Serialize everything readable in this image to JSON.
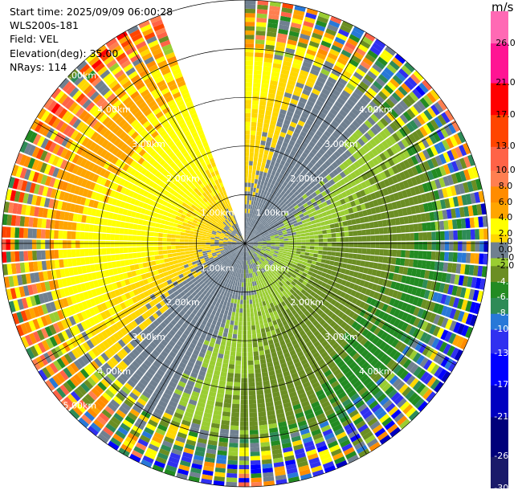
{
  "info": {
    "start_time": "Start time: 2025/09/09 06:00:28",
    "instrument": "WLS200s-181",
    "field": "Field: VEL",
    "elevation": "Elevation(deg): 35.00",
    "nrays": "NRays: 114"
  },
  "chart_data": {
    "type": "heatmap",
    "projection": "ppi-polar",
    "field": "VEL",
    "units": "m/s",
    "nrays": 114,
    "elevation_deg": 35.0,
    "max_range_km": 5.0,
    "empty_sector_deg": [
      340,
      360
    ],
    "range_rings_km": [
      1.0,
      2.0,
      3.0,
      4.0,
      5.0
    ],
    "range_ring_labels": [
      "1.00km",
      "2.00km",
      "3.00km",
      "4.00km",
      "5.00km"
    ],
    "colorbar": {
      "levels": [
        -30.0,
        -26.0,
        -21.0,
        -17.0,
        -13.0,
        -10.0,
        -8.0,
        -6.0,
        -4.0,
        -2.0,
        -1.0,
        0.0,
        1.0,
        2.0,
        4.0,
        6.0,
        8.0,
        10.0,
        13.0,
        17.0,
        21.0,
        26.0,
        30.0
      ],
      "tick_labels": [
        "-30.0",
        "-26.0",
        "-21.0",
        "-17.0",
        "-13.0",
        "-10.0",
        "-8.0",
        "-6.0",
        "-4.0",
        "-2.0",
        "-1.0",
        "0.0",
        "1.0",
        "2.0",
        "4.0",
        "6.0",
        "8.0",
        "10.0",
        "13.0",
        "17.0",
        "21.0",
        "26.0"
      ],
      "colors": [
        "#1a1a6a",
        "#00007a",
        "#0000c0",
        "#0000ff",
        "#3030f0",
        "#2878d8",
        "#2e8b57",
        "#228b22",
        "#6b8e23",
        "#9acd32",
        "#708090",
        "#708090",
        "#ffd700",
        "#ffff00",
        "#ffa500",
        "#ff8c00",
        "#ff7f50",
        "#ff6347",
        "#ff4500",
        "#ff0000",
        "#ff1493",
        "#ff69b4"
      ],
      "light_label_indices": [
        0,
        1,
        2,
        3,
        4,
        5,
        6,
        7,
        8
      ]
    }
  }
}
